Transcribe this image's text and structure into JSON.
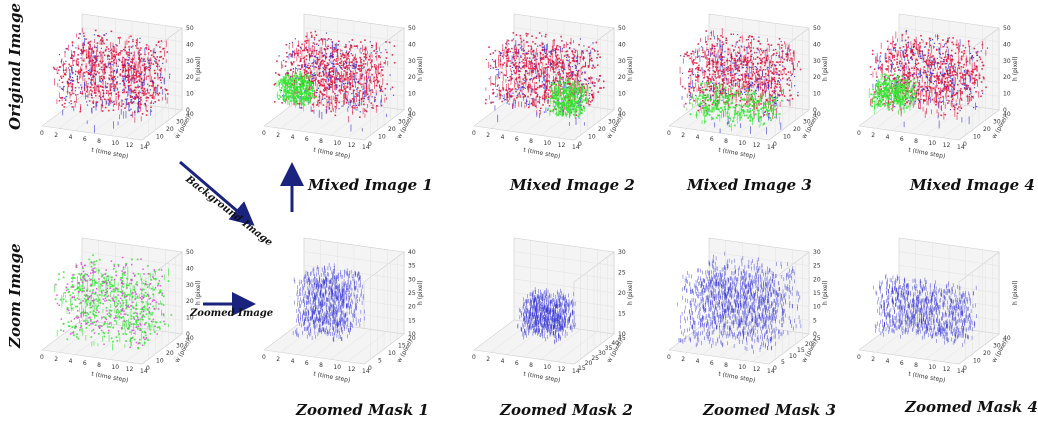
{
  "row_labels": {
    "top": "Original Image",
    "bottom": "Zoom Image"
  },
  "captions": {
    "mixed": [
      "Mixed Image 1",
      "Mixed Image 2",
      "Mixed Image 3",
      "Mixed Image 4"
    ],
    "masks": [
      "Zoomed Mask 1",
      "Zoomed Mask 2",
      "Zoomed Mask 3",
      "Zoomed Mask 4"
    ]
  },
  "arrow_labels": {
    "background": "Background Image",
    "zoomed": "Zoomed Image"
  },
  "axis_labels": {
    "t": "t (time step)",
    "w": "w (pixel)",
    "h": "h (pixel)"
  },
  "colors": {
    "red": "#e0113a",
    "blue": "#2a2adf",
    "green": "#33e633",
    "magenta": "#e040e0",
    "arrow": "#1a237e",
    "mask": "#3535d8"
  }
}
